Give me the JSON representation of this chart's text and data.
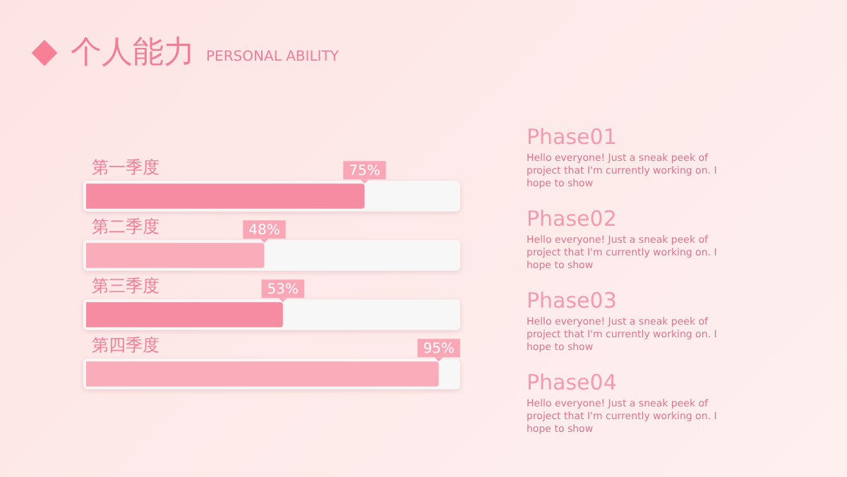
{
  "chart_data": {
    "type": "bar",
    "title": "个人能力",
    "subtitle": "PERSONAL ABILITY",
    "orientation": "horizontal",
    "categories": [
      "第一季度",
      "第二季度",
      "第三季度",
      "第四季度"
    ],
    "values": [
      75,
      48,
      53,
      95
    ],
    "value_labels": [
      "75%",
      "48%",
      "53%",
      "95%"
    ],
    "colors": [
      "#f58ca2",
      "#f9acba",
      "#f58ca2",
      "#f9acba"
    ],
    "tick_labels": "y",
    "grid": false,
    "legend": false,
    "annotations": [
      "Phase01",
      "Hello everyone! Just a sneak peek of project that I'm currently working on. I hope to show",
      "Phase02",
      "Hello everyone! Just a sneak peek of project that I'm currently working on. I hope to show",
      "Phase03",
      "Hello everyone! Just a sneak peek of project that I'm currently working on. I hope to show",
      "Phase04",
      "Hello everyone! Just a sneak peek of project that I'm currently working on. I hope to show"
    ]
  }
}
